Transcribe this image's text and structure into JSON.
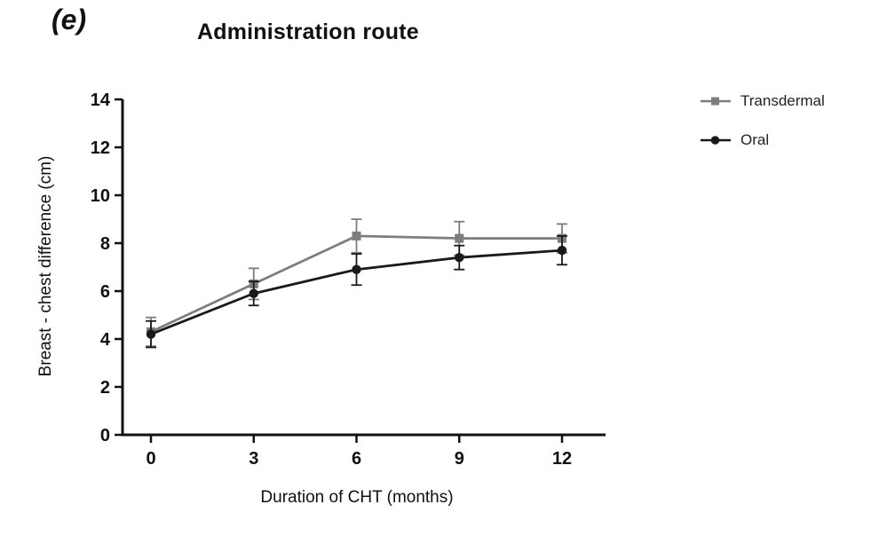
{
  "panel_label": "(e)",
  "title": "Administration route",
  "legend": [
    {
      "label": "Transdermal",
      "marker": "square",
      "color": "#7d7d7d"
    },
    {
      "label": "Oral",
      "marker": "circle",
      "color": "#1a1a1a"
    }
  ],
  "chart_data": {
    "type": "line",
    "x": [
      0,
      3,
      6,
      9,
      12
    ],
    "xlabel": "Duration of CHT (months)",
    "ylabel": "Breast - chest difference (cm)",
    "ylim": [
      0,
      14
    ],
    "ytick_step": 2,
    "grid": false,
    "legend_position": "right",
    "series": [
      {
        "name": "Transdermal",
        "color": "#7d7d7d",
        "marker": "square",
        "values": [
          4.3,
          6.3,
          8.3,
          8.2,
          8.2
        ],
        "errors": [
          0.6,
          0.65,
          0.7,
          0.7,
          0.6
        ]
      },
      {
        "name": "Oral",
        "color": "#1a1a1a",
        "marker": "circle",
        "values": [
          4.2,
          5.9,
          6.9,
          7.4,
          7.7
        ],
        "errors": [
          0.55,
          0.5,
          0.65,
          0.5,
          0.6
        ]
      }
    ]
  }
}
